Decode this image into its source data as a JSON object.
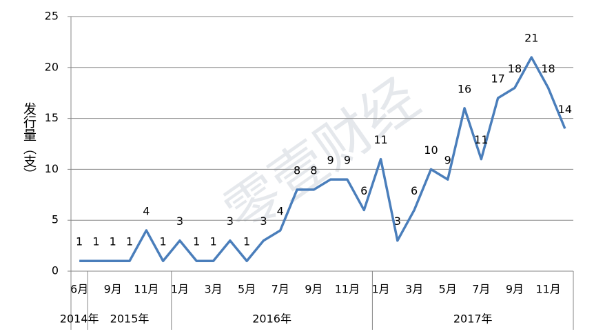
{
  "chart_data": {
    "type": "line",
    "y_label": "发行量（支）",
    "watermark": "零壹财经",
    "categories": [
      "6月",
      null,
      "9月",
      null,
      "11月",
      null,
      "1月",
      null,
      "3月",
      null,
      "5月",
      null,
      "7月",
      null,
      "9月",
      null,
      "11月",
      null,
      "1月",
      null,
      "3月",
      null,
      "5月",
      null,
      "7月",
      null,
      "9月",
      null,
      "11月",
      null
    ],
    "category_groups": [
      "2014年",
      "2015年",
      null,
      null,
      null,
      null,
      "2016年",
      null,
      null,
      null,
      null,
      null,
      null,
      null,
      null,
      null,
      null,
      null,
      "2017年",
      null,
      null,
      null,
      null,
      null,
      null,
      null,
      null,
      null,
      null,
      null
    ],
    "series": [
      {
        "color": "#4a7ebb",
        "values": [
          1,
          1,
          1,
          1,
          4,
          1,
          3,
          1,
          1,
          3,
          1,
          3,
          4,
          8,
          8,
          9,
          9,
          6,
          11,
          3,
          6,
          10,
          9,
          16,
          11,
          17,
          18,
          21,
          18,
          14
        ]
      }
    ],
    "ylim": [
      0,
      25
    ],
    "yticks": [
      0,
      5,
      10,
      15,
      20,
      25
    ],
    "grid": true
  }
}
